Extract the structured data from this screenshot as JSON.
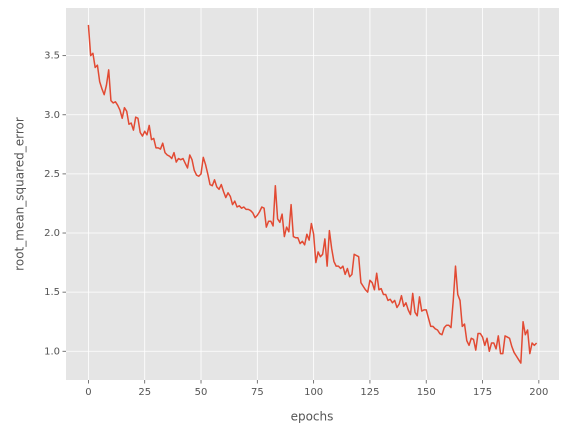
{
  "chart_data": {
    "type": "line",
    "xlabel": "epochs",
    "ylabel": "root_mean_squared_error",
    "color": "#e24a33",
    "grid": true,
    "xlim": [
      -9.95,
      208.95
    ],
    "ylim": [
      0.757,
      3.903
    ],
    "xticks": [
      0,
      25,
      50,
      75,
      100,
      125,
      150,
      175,
      200
    ],
    "yticks": [
      {
        "value": 1.0,
        "label": "1.0"
      },
      1.5,
      {
        "value": 2.0,
        "label": "2.0"
      },
      2.5,
      {
        "value": 3.0,
        "label": "3.0"
      },
      3.5
    ],
    "x": [
      0,
      1,
      2,
      3,
      4,
      5,
      6,
      7,
      8,
      9,
      10,
      11,
      12,
      13,
      14,
      15,
      16,
      17,
      18,
      19,
      20,
      21,
      22,
      23,
      24,
      25,
      26,
      27,
      28,
      29,
      30,
      31,
      32,
      33,
      34,
      35,
      36,
      37,
      38,
      39,
      40,
      41,
      42,
      43,
      44,
      45,
      46,
      47,
      48,
      49,
      50,
      51,
      52,
      53,
      54,
      55,
      56,
      57,
      58,
      59,
      60,
      61,
      62,
      63,
      64,
      65,
      66,
      67,
      68,
      69,
      70,
      71,
      72,
      73,
      74,
      75,
      76,
      77,
      78,
      79,
      80,
      81,
      82,
      83,
      84,
      85,
      86,
      87,
      88,
      89,
      90,
      91,
      92,
      93,
      94,
      95,
      96,
      97,
      98,
      99,
      100,
      101,
      102,
      103,
      104,
      105,
      106,
      107,
      108,
      109,
      110,
      111,
      112,
      113,
      114,
      115,
      116,
      117,
      118,
      119,
      120,
      121,
      122,
      123,
      124,
      125,
      126,
      127,
      128,
      129,
      130,
      131,
      132,
      133,
      134,
      135,
      136,
      137,
      138,
      139,
      140,
      141,
      142,
      143,
      144,
      145,
      146,
      147,
      148,
      149,
      150,
      151,
      152,
      153,
      154,
      155,
      156,
      157,
      158,
      159,
      160,
      161,
      162,
      163,
      164,
      165,
      166,
      167,
      168,
      169,
      170,
      171,
      172,
      173,
      174,
      175,
      176,
      177,
      178,
      179,
      180,
      181,
      182,
      183,
      184,
      185,
      186,
      187,
      188,
      189,
      190,
      191,
      192,
      193,
      194,
      195,
      196,
      197,
      198,
      199
    ],
    "values": [
      3.76,
      3.5,
      3.52,
      3.4,
      3.42,
      3.28,
      3.22,
      3.17,
      3.25,
      3.38,
      3.12,
      3.1,
      3.11,
      3.08,
      3.04,
      2.97,
      3.06,
      3.03,
      2.92,
      2.93,
      2.87,
      2.98,
      2.97,
      2.85,
      2.82,
      2.86,
      2.83,
      2.91,
      2.79,
      2.8,
      2.72,
      2.72,
      2.71,
      2.76,
      2.68,
      2.66,
      2.65,
      2.63,
      2.68,
      2.6,
      2.63,
      2.62,
      2.63,
      2.59,
      2.55,
      2.66,
      2.62,
      2.53,
      2.49,
      2.48,
      2.5,
      2.64,
      2.58,
      2.5,
      2.41,
      2.4,
      2.45,
      2.39,
      2.37,
      2.41,
      2.35,
      2.3,
      2.34,
      2.31,
      2.24,
      2.27,
      2.22,
      2.23,
      2.21,
      2.22,
      2.2,
      2.2,
      2.19,
      2.17,
      2.13,
      2.15,
      2.18,
      2.22,
      2.21,
      2.05,
      2.1,
      2.1,
      2.06,
      2.4,
      2.12,
      2.09,
      2.16,
      1.97,
      2.05,
      2.01,
      2.24,
      1.97,
      1.96,
      1.96,
      1.91,
      1.93,
      1.9,
      1.99,
      1.94,
      2.08,
      1.99,
      1.75,
      1.84,
      1.8,
      1.82,
      1.95,
      1.72,
      2.02,
      1.87,
      1.76,
      1.72,
      1.72,
      1.7,
      1.72,
      1.65,
      1.7,
      1.63,
      1.65,
      1.82,
      1.81,
      1.8,
      1.58,
      1.55,
      1.52,
      1.5,
      1.6,
      1.58,
      1.52,
      1.66,
      1.52,
      1.53,
      1.48,
      1.48,
      1.43,
      1.44,
      1.41,
      1.43,
      1.37,
      1.4,
      1.47,
      1.38,
      1.41,
      1.35,
      1.31,
      1.49,
      1.33,
      1.3,
      1.46,
      1.34,
      1.35,
      1.35,
      1.28,
      1.21,
      1.21,
      1.19,
      1.18,
      1.15,
      1.14,
      1.2,
      1.22,
      1.22,
      1.2,
      1.43,
      1.72,
      1.48,
      1.43,
      1.21,
      1.23,
      1.09,
      1.05,
      1.11,
      1.1,
      1.01,
      1.15,
      1.15,
      1.12,
      1.05,
      1.11,
      1.0,
      1.07,
      1.07,
      1.02,
      1.13,
      0.98,
      0.98,
      1.13,
      1.12,
      1.11,
      1.04,
      0.99,
      0.96,
      0.93,
      0.9,
      1.25,
      1.14,
      1.18,
      0.98,
      1.07,
      1.05,
      1.07
    ]
  }
}
